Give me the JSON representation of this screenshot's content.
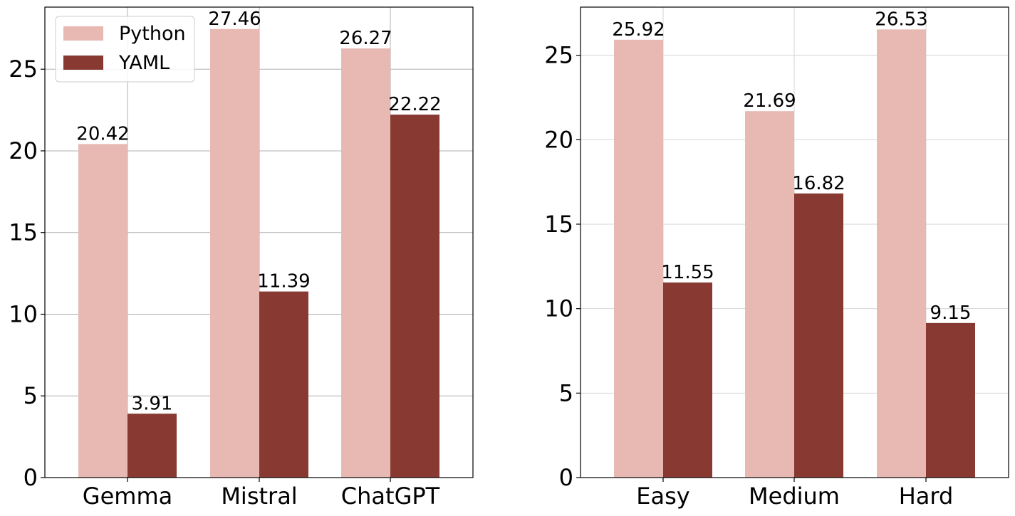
{
  "chart_data": [
    {
      "type": "bar",
      "categories": [
        "Gemma",
        "Mistral",
        "ChatGPT"
      ],
      "series": [
        {
          "name": "Python",
          "values": [
            20.42,
            27.46,
            26.27
          ]
        },
        {
          "name": "YAML",
          "values": [
            3.91,
            11.39,
            22.22
          ]
        }
      ],
      "value_labels": [
        [
          "20.42",
          "27.46",
          "26.27"
        ],
        [
          "3.91",
          "11.39",
          "22.22"
        ]
      ],
      "ylim": [
        0,
        28.8
      ],
      "yticks": [
        0,
        5,
        10,
        15,
        20,
        25
      ],
      "ytick_labels": [
        "0",
        "5",
        "10",
        "15",
        "20",
        "25"
      ],
      "grid": true,
      "legend": "top-left",
      "colors": [
        "#e8b8b3",
        "#873932"
      ]
    },
    {
      "type": "bar",
      "categories": [
        "Easy",
        "Medium",
        "Hard"
      ],
      "series": [
        {
          "name": "Python",
          "values": [
            25.92,
            21.69,
            26.53
          ]
        },
        {
          "name": "YAML",
          "values": [
            11.55,
            16.82,
            9.15
          ]
        }
      ],
      "value_labels": [
        [
          "25.92",
          "21.69",
          "26.53"
        ],
        [
          "11.55",
          "16.82",
          "9.15"
        ]
      ],
      "ylim": [
        0,
        27.85
      ],
      "yticks": [
        0,
        5,
        10,
        15,
        20,
        25
      ],
      "ytick_labels": [
        "0",
        "5",
        "10",
        "15",
        "20",
        "25"
      ],
      "grid": true,
      "legend": "none",
      "colors": [
        "#e8b8b3",
        "#873932"
      ]
    }
  ]
}
